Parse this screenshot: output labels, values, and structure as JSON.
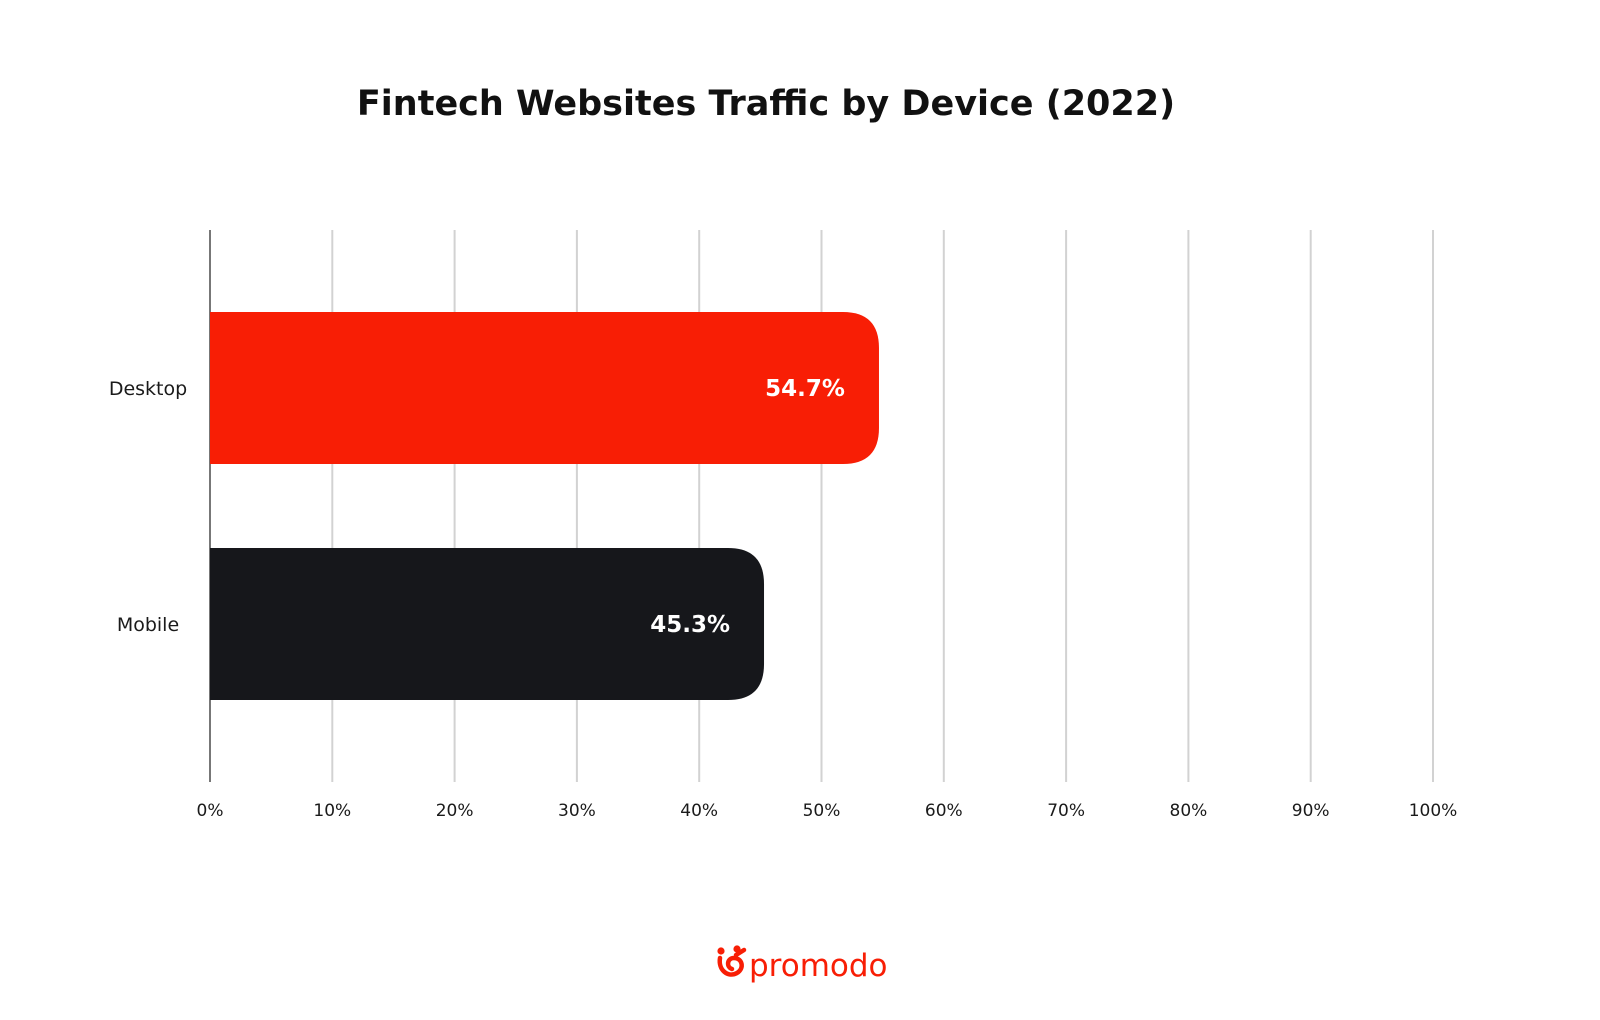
{
  "chart_data": {
    "type": "bar",
    "orientation": "horizontal",
    "title": "Fintech Websites Traffic by Device (2022)",
    "categories": [
      "Desktop",
      "Mobile"
    ],
    "values": [
      54.7,
      45.3
    ],
    "value_labels": [
      "54.7%",
      "45.3%"
    ],
    "bar_colors": [
      "#f81e05",
      "#16171b"
    ],
    "xlim": [
      0,
      100
    ],
    "x_ticks": [
      "0%",
      "10%",
      "20%",
      "30%",
      "40%",
      "50%",
      "60%",
      "70%",
      "80%",
      "90%",
      "100%"
    ],
    "grid": true,
    "gridline_color": "#d2d2d2"
  },
  "brand": {
    "name": "promodo",
    "color": "#f81e05",
    "icon": "promodo-logo-icon"
  }
}
